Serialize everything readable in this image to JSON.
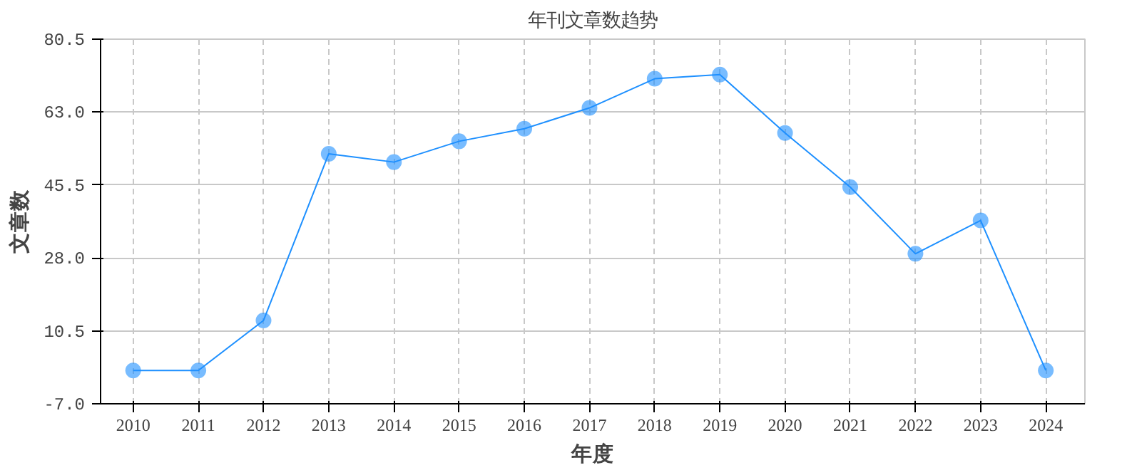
{
  "chart_data": {
    "type": "line",
    "title": "年刊文章数趋势",
    "xlabel": "年度",
    "ylabel": "文章数",
    "categories": [
      "2010",
      "2011",
      "2012",
      "2013",
      "2014",
      "2015",
      "2016",
      "2017",
      "2018",
      "2019",
      "2020",
      "2021",
      "2022",
      "2023",
      "2024"
    ],
    "series": [
      {
        "color": "#1e90ff",
        "values": [
          1,
          1,
          13,
          53,
          51,
          56,
          59,
          64,
          71,
          72,
          58,
          45,
          29,
          37,
          1
        ]
      }
    ],
    "ylim": [
      -7,
      80.5
    ],
    "yticks": [
      {
        "value": -7,
        "label": "-7.0"
      },
      {
        "value": 10.5,
        "label": "10.5"
      },
      {
        "value": 28,
        "label": "28.0"
      },
      {
        "value": 45.5,
        "label": "45.5"
      },
      {
        "value": 63,
        "label": "63.0"
      },
      {
        "value": 80.5,
        "label": "80.5"
      }
    ],
    "grid": true,
    "marker": "circle",
    "line_style": "solid"
  }
}
